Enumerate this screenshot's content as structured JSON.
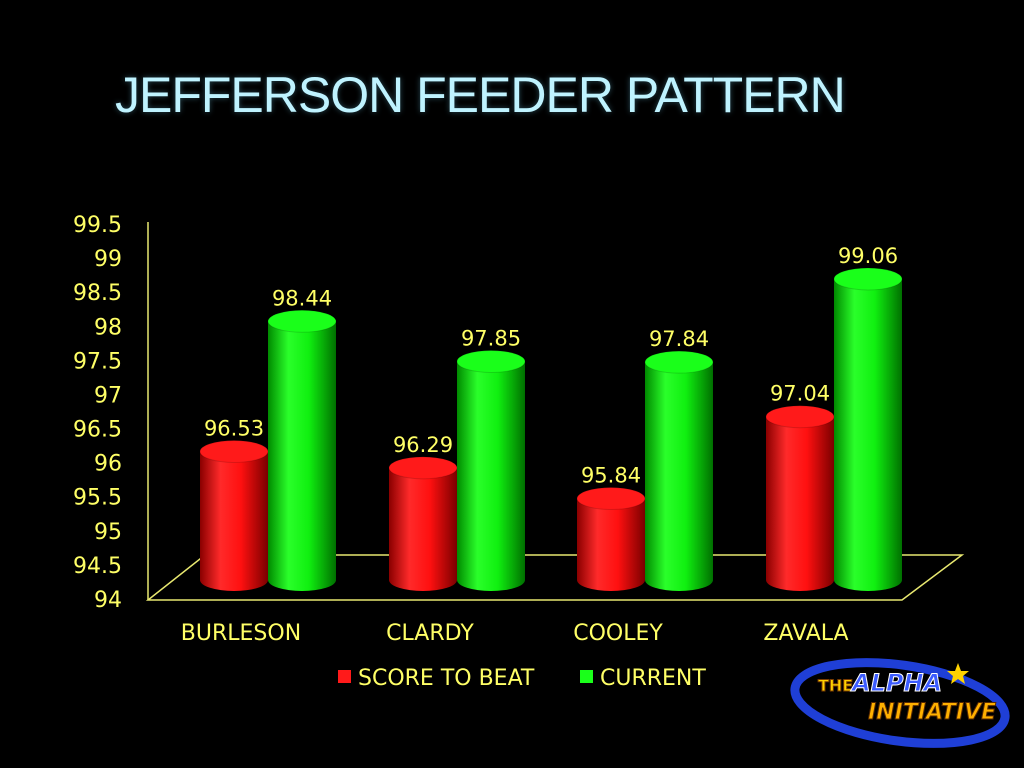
{
  "slide": {
    "title": "JEFFERSON FEEDER PATTERN"
  },
  "logo": {
    "line1_a": "THE",
    "line1_b": "ALPHA",
    "line2": "INITIATIVE"
  },
  "chart_data": {
    "type": "bar",
    "title": "",
    "xlabel": "",
    "ylabel": "",
    "ylim": [
      94,
      99.5
    ],
    "yticks": [
      94,
      94.5,
      95,
      95.5,
      96,
      96.5,
      97,
      97.5,
      98,
      98.5,
      99,
      99.5
    ],
    "categories": [
      "BURLESON",
      "CLARDY",
      "COOLEY",
      "ZAVALA"
    ],
    "series": [
      {
        "name": "SCORE TO BEAT",
        "color": "#ff1a1a",
        "values": [
          96.53,
          96.29,
          95.84,
          97.04
        ]
      },
      {
        "name": "CURRENT",
        "color": "#1aff1a",
        "values": [
          98.44,
          97.85,
          97.84,
          99.06
        ]
      }
    ],
    "legend_position": "bottom",
    "text_color": "#ffff66",
    "grid": false
  }
}
